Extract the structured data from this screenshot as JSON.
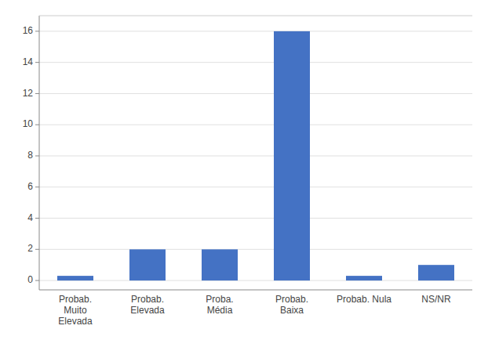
{
  "chart_data": {
    "type": "bar",
    "categories": [
      "Probab.\nMuito\nElevada",
      "Probab.\nElevada",
      "Proba.\nMédia",
      "Probab.\nBaixa",
      "Probab. Nula",
      "NS/NR"
    ],
    "values": [
      0.3,
      2.0,
      2.0,
      16.0,
      0.3,
      1.0
    ],
    "color": "#4472C4",
    "ylim": [
      -0.6,
      17
    ],
    "yticks": [
      0,
      2,
      4,
      6,
      8,
      10,
      12,
      14,
      16
    ],
    "grid": true
  }
}
